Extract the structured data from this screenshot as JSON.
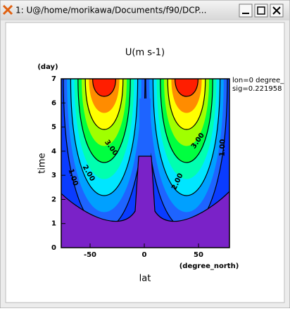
{
  "window": {
    "title": "1: U@/home/morikawa/Documents/f90/DCP..."
  },
  "plot": {
    "title": "U(m s-1)",
    "y_unit": "(day)",
    "y_label": "time",
    "x_label": "lat",
    "x_unit": "(degree_north)",
    "x_ticks": [
      "-50",
      "0",
      "50"
    ],
    "y_ticks": [
      "0",
      "1",
      "2",
      "3",
      "4",
      "5",
      "6",
      "7"
    ],
    "contour_labels": [
      "1.00",
      "2.00",
      "3.00",
      "3.00",
      "2.00",
      "1.00"
    ],
    "annotation": [
      "lon=0 degree_",
      "sig=0.221958"
    ]
  }
}
